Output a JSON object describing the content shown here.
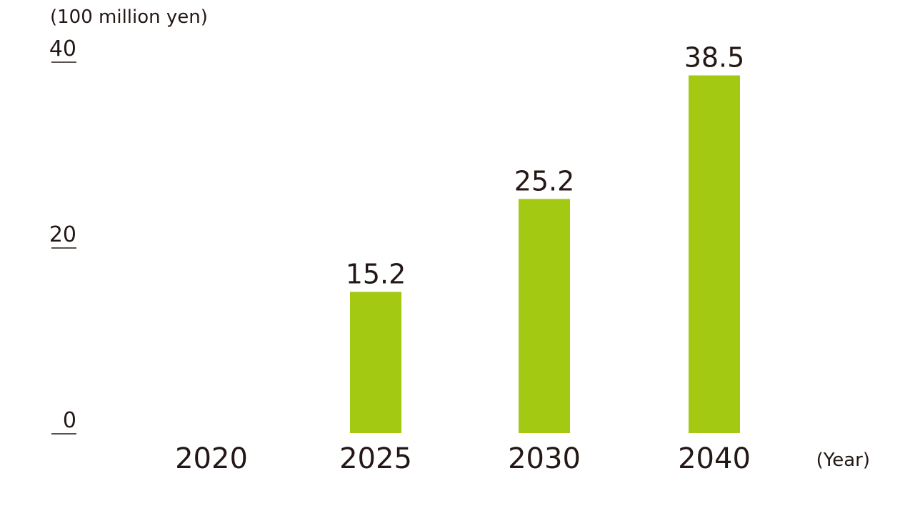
{
  "chart_data": {
    "type": "bar",
    "categories": [
      "2020",
      "2025",
      "2030",
      "2040"
    ],
    "values": [
      null,
      15.2,
      25.2,
      38.5
    ],
    "data_labels": [
      "",
      "15.2",
      "25.2",
      "38.5"
    ],
    "ylim": [
      0,
      40
    ],
    "yticks": [
      "0",
      "20",
      "40"
    ],
    "ylabel": "(100 million yen)",
    "xlabel": "(Year)",
    "title": "",
    "grid": false
  },
  "colors": {
    "bar": "#a3c912",
    "text": "#231815"
  }
}
